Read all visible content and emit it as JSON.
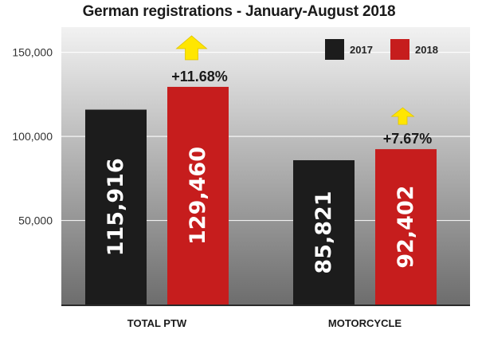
{
  "chart_data": {
    "type": "bar",
    "title": "German registrations - January-August 2018",
    "categories": [
      "TOTAL PTW",
      "MOTORCYCLE"
    ],
    "series": [
      {
        "name": "2017",
        "values": [
          115916,
          85821
        ],
        "labels": [
          "115,916",
          "85,821"
        ],
        "color": "#1c1c1c"
      },
      {
        "name": "2018",
        "values": [
          129460,
          92402
        ],
        "labels": [
          "129,460",
          "92,402"
        ],
        "color": "#c61d1d"
      }
    ],
    "changes": [
      "+11.68%",
      "+7.67%"
    ],
    "yticks": [
      50000,
      100000,
      150000
    ],
    "ytick_labels": [
      "50,000",
      "100,000",
      "150,000"
    ],
    "ylim": [
      0,
      165000
    ],
    "legend": "top-right",
    "arrow_color": "#ffe600",
    "background_gradient": [
      "#f2f2f2",
      "#6d6d6d"
    ]
  }
}
